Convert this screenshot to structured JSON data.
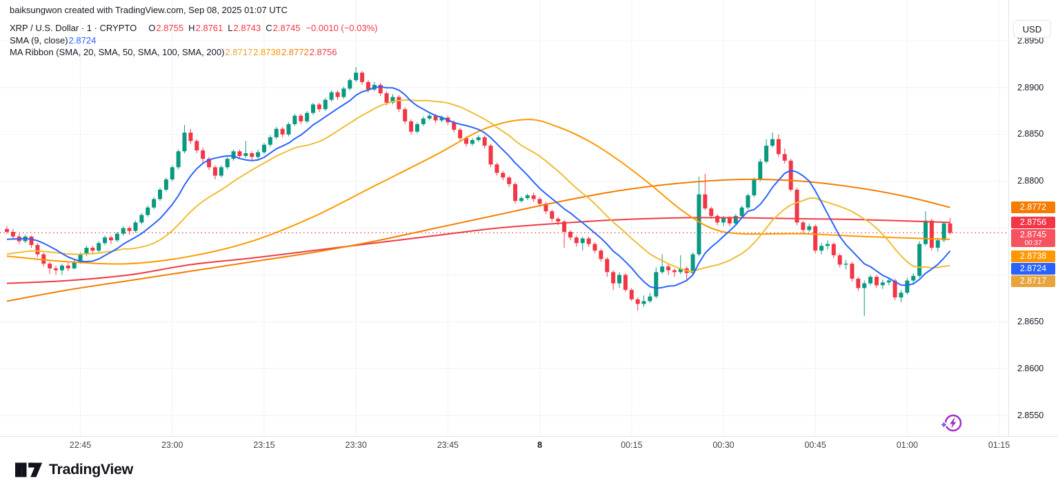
{
  "attribution": "baiksungwon created with TradingView.com, Sep 08, 2025 01:07 UTC",
  "symbol_row": {
    "title": "XRP / U.S. Dollar · 1 · CRYPTO",
    "o_label": "O",
    "o": "2.8755",
    "h_label": "H",
    "h": "2.8761",
    "l_label": "L",
    "l": "2.8743",
    "c_label": "C",
    "c": "2.8745",
    "change": "−0.0010 (−0.03%)"
  },
  "sma_row": {
    "title": "SMA (9, close)",
    "value": "2.8724"
  },
  "ribbon_row": {
    "title": "MA Ribbon (SMA, 20, SMA, 50, SMA, 100, SMA, 200)",
    "values": [
      "2.8717",
      "2.8738",
      "2.8772",
      "2.8756"
    ],
    "colors": [
      "#E9A33B",
      "#FF9800",
      "#F57C00",
      "#F23645"
    ]
  },
  "price_axis": {
    "currency": "USD",
    "tick_labels": [
      "2.8950",
      "2.8900",
      "2.8850",
      "2.8800",
      "2.8650",
      "2.8600",
      "2.8550"
    ],
    "tick_values": [
      2.895,
      2.89,
      2.885,
      2.88,
      2.865,
      2.86,
      2.855
    ],
    "grid_values": [
      2.895,
      2.89,
      2.885,
      2.88,
      2.875,
      2.87,
      2.865,
      2.86,
      2.855
    ],
    "badges": [
      {
        "text": "2.8772",
        "price": 2.8772,
        "bg": "#F57C00",
        "name": "sma100-price-label"
      },
      {
        "text": "2.8756",
        "price": 2.8756,
        "bg": "#F23645",
        "name": "sma200-price-label"
      },
      {
        "text": "2.8745",
        "price": 2.8745,
        "bg": "#F7525F",
        "sub": "00:37",
        "name": "last-price-label"
      },
      {
        "text": "2.8738",
        "price": 2.8738,
        "bg": "#FF9800",
        "name": "sma50-price-label"
      },
      {
        "text": "2.8724",
        "price": 2.8724,
        "bg": "#2962FF",
        "name": "sma9-price-label"
      },
      {
        "text": "2.8717",
        "price": 2.8717,
        "bg": "#E9A33B",
        "name": "sma20-price-label"
      }
    ]
  },
  "time_axis": {
    "ticks": [
      {
        "label": "22:45",
        "index": 12
      },
      {
        "label": "23:00",
        "index": 27
      },
      {
        "label": "23:15",
        "index": 42
      },
      {
        "label": "23:30",
        "index": 57
      },
      {
        "label": "23:45",
        "index": 72
      },
      {
        "label": "8",
        "index": 87,
        "bold": true
      },
      {
        "label": "00:15",
        "index": 102
      },
      {
        "label": "00:30",
        "index": 117
      },
      {
        "label": "00:45",
        "index": 132
      },
      {
        "label": "01:00",
        "index": 147
      },
      {
        "label": "01:15",
        "index": 162
      }
    ]
  },
  "logo_text": "TradingView",
  "colors": {
    "up": "#089981",
    "down": "#F23645",
    "grid": "#F0F2F5",
    "price_line": "#F23645",
    "axis_border": "#E0E3EB",
    "bolt_circle": "#A12AC9",
    "bolt_spark": "#7C5CFA"
  },
  "chart_data": {
    "type": "candlestick",
    "symbol": "XRP / U.S. Dollar",
    "interval": "1 minute",
    "start_time": "22:33",
    "price_line": {
      "value": 2.8745,
      "countdown": "00:37"
    },
    "y_range_hint": [
      2.852,
      2.897
    ],
    "candles": [
      [
        2.8749,
        2.8752,
        2.8744,
        2.8746
      ],
      [
        2.8746,
        2.8749,
        2.8739,
        2.8741
      ],
      [
        2.8741,
        2.8744,
        2.8733,
        2.8736
      ],
      [
        2.8736,
        2.8743,
        2.8734,
        2.8741
      ],
      [
        2.8741,
        2.8742,
        2.8729,
        2.8732
      ],
      [
        2.8732,
        2.8734,
        2.8719,
        2.8722
      ],
      [
        2.8722,
        2.8724,
        2.8709,
        2.8712
      ],
      [
        2.8712,
        2.8714,
        2.8701,
        2.8707
      ],
      [
        2.8707,
        2.871,
        2.87,
        2.8705
      ],
      [
        2.8705,
        2.8712,
        2.87,
        2.871
      ],
      [
        2.871,
        2.8713,
        2.8704,
        2.8707
      ],
      [
        2.8707,
        2.8716,
        2.8706,
        2.8714
      ],
      [
        2.8714,
        2.8724,
        2.8712,
        2.8722
      ],
      [
        2.8722,
        2.8731,
        2.872,
        2.8729
      ],
      [
        2.8729,
        2.8731,
        2.8722,
        2.8726
      ],
      [
        2.8726,
        2.8736,
        2.8724,
        2.8734
      ],
      [
        2.8734,
        2.8742,
        2.8732,
        2.874
      ],
      [
        2.874,
        2.8742,
        2.8733,
        2.8737
      ],
      [
        2.8737,
        2.8746,
        2.8735,
        2.8744
      ],
      [
        2.8744,
        2.8752,
        2.8742,
        2.875
      ],
      [
        2.875,
        2.8752,
        2.8743,
        2.8747
      ],
      [
        2.8747,
        2.8758,
        2.8745,
        2.8756
      ],
      [
        2.8756,
        2.8766,
        2.8754,
        2.8764
      ],
      [
        2.8764,
        2.8774,
        2.8762,
        2.8772
      ],
      [
        2.8772,
        2.8783,
        2.877,
        2.8781
      ],
      [
        2.8781,
        2.8793,
        2.8779,
        2.8791
      ],
      [
        2.8791,
        2.8804,
        2.8789,
        2.8802
      ],
      [
        2.8802,
        2.8817,
        2.88,
        2.8815
      ],
      [
        2.8815,
        2.8834,
        2.8813,
        2.8832
      ],
      [
        2.8832,
        2.886,
        2.883,
        2.8852
      ],
      [
        2.8852,
        2.8856,
        2.884,
        2.8843
      ],
      [
        2.8843,
        2.8845,
        2.883,
        2.8833
      ],
      [
        2.8833,
        2.8836,
        2.882,
        2.8824
      ],
      [
        2.8824,
        2.8826,
        2.8812,
        2.8815
      ],
      [
        2.8815,
        2.8817,
        2.8802,
        2.8806
      ],
      [
        2.8806,
        2.8817,
        2.8804,
        2.8815
      ],
      [
        2.8815,
        2.8826,
        2.8813,
        2.8824
      ],
      [
        2.8824,
        2.8834,
        2.8822,
        2.8832
      ],
      [
        2.8832,
        2.8834,
        2.8824,
        2.8827
      ],
      [
        2.8827,
        2.8843,
        2.8825,
        2.883
      ],
      [
        2.883,
        2.8832,
        2.8822,
        2.8826
      ],
      [
        2.8826,
        2.8834,
        2.8824,
        2.8831
      ],
      [
        2.8831,
        2.8841,
        2.8829,
        2.8839
      ],
      [
        2.8839,
        2.8849,
        2.8837,
        2.8847
      ],
      [
        2.8847,
        2.8858,
        2.8845,
        2.8856
      ],
      [
        2.8856,
        2.8858,
        2.8847,
        2.885
      ],
      [
        2.885,
        2.8863,
        2.8848,
        2.8861
      ],
      [
        2.8861,
        2.8872,
        2.8859,
        2.887
      ],
      [
        2.887,
        2.8872,
        2.8861,
        2.8864
      ],
      [
        2.8864,
        2.8875,
        2.8862,
        2.8873
      ],
      [
        2.8873,
        2.8884,
        2.8871,
        2.8882
      ],
      [
        2.8882,
        2.8884,
        2.8874,
        2.8877
      ],
      [
        2.8877,
        2.8889,
        2.8875,
        2.8887
      ],
      [
        2.8887,
        2.8897,
        2.8885,
        2.8895
      ],
      [
        2.8895,
        2.8897,
        2.8887,
        2.889
      ],
      [
        2.889,
        2.8901,
        2.8888,
        2.8899
      ],
      [
        2.8899,
        2.891,
        2.8897,
        2.8908
      ],
      [
        2.8908,
        2.8922,
        2.8906,
        2.8916
      ],
      [
        2.8916,
        2.8918,
        2.8903,
        2.8906
      ],
      [
        2.8906,
        2.8908,
        2.8895,
        2.8898
      ],
      [
        2.8898,
        2.8906,
        2.8896,
        2.8903
      ],
      [
        2.8903,
        2.8905,
        2.8891,
        2.8894
      ],
      [
        2.8894,
        2.8896,
        2.8881,
        2.8884
      ],
      [
        2.8884,
        2.8893,
        2.8882,
        2.889
      ],
      [
        2.889,
        2.8892,
        2.8874,
        2.8877
      ],
      [
        2.8877,
        2.8879,
        2.8861,
        2.8864
      ],
      [
        2.8864,
        2.8866,
        2.885,
        2.8853
      ],
      [
        2.8853,
        2.8863,
        2.8851,
        2.8861
      ],
      [
        2.8861,
        2.8869,
        2.8859,
        2.8867
      ],
      [
        2.8867,
        2.8872,
        2.8865,
        2.887
      ],
      [
        2.887,
        2.8872,
        2.8862,
        2.8865
      ],
      [
        2.8865,
        2.887,
        2.8863,
        2.8868
      ],
      [
        2.8868,
        2.887,
        2.886,
        2.8863
      ],
      [
        2.8863,
        2.8865,
        2.8852,
        2.8855
      ],
      [
        2.8855,
        2.8857,
        2.8843,
        2.8846
      ],
      [
        2.8846,
        2.8848,
        2.8837,
        2.884
      ],
      [
        2.884,
        2.8846,
        2.8838,
        2.8844
      ],
      [
        2.8844,
        2.8849,
        2.8842,
        2.8847
      ],
      [
        2.8847,
        2.8849,
        2.8835,
        2.8838
      ],
      [
        2.8838,
        2.884,
        2.8815,
        2.8818
      ],
      [
        2.8818,
        2.882,
        2.8806,
        2.8809
      ],
      [
        2.8809,
        2.8811,
        2.8801,
        2.8804
      ],
      [
        2.8804,
        2.8806,
        2.8794,
        2.8797
      ],
      [
        2.8797,
        2.8799,
        2.8776,
        2.8779
      ],
      [
        2.8779,
        2.8784,
        2.8777,
        2.8782
      ],
      [
        2.8782,
        2.8787,
        2.878,
        2.8785
      ],
      [
        2.8785,
        2.8788,
        2.8778,
        2.8781
      ],
      [
        2.8781,
        2.8783,
        2.8773,
        2.8776
      ],
      [
        2.8776,
        2.8778,
        2.8765,
        2.8768
      ],
      [
        2.8768,
        2.877,
        2.8757,
        2.876
      ],
      [
        2.876,
        2.8762,
        2.8753,
        2.8757
      ],
      [
        2.8757,
        2.8759,
        2.8729,
        2.8746
      ],
      [
        2.8746,
        2.8748,
        2.8737,
        2.874
      ],
      [
        2.874,
        2.8742,
        2.873,
        2.8734
      ],
      [
        2.8734,
        2.8741,
        2.8726,
        2.8739
      ],
      [
        2.8739,
        2.8741,
        2.873,
        2.8733
      ],
      [
        2.8733,
        2.8735,
        2.8723,
        2.8726
      ],
      [
        2.8726,
        2.8728,
        2.8714,
        2.8717
      ],
      [
        2.8717,
        2.8719,
        2.8698,
        2.8703
      ],
      [
        2.8703,
        2.8705,
        2.8684,
        2.8691
      ],
      [
        2.8691,
        2.8703,
        2.8686,
        2.87
      ],
      [
        2.87,
        2.8702,
        2.8682,
        2.8684
      ],
      [
        2.8684,
        2.8686,
        2.8672,
        2.8674
      ],
      [
        2.8674,
        2.8676,
        2.8662,
        2.8669
      ],
      [
        2.8669,
        2.8678,
        2.8666,
        2.8672
      ],
      [
        2.8672,
        2.8681,
        2.867,
        2.8677
      ],
      [
        2.8677,
        2.8708,
        2.8675,
        2.8703
      ],
      [
        2.8703,
        2.8722,
        2.8701,
        2.8709
      ],
      [
        2.8709,
        2.8711,
        2.87,
        2.8705
      ],
      [
        2.8705,
        2.8707,
        2.8698,
        2.8703
      ],
      [
        2.8703,
        2.8721,
        2.8701,
        2.8707
      ],
      [
        2.8707,
        2.8709,
        2.8693,
        2.8702
      ],
      [
        2.8702,
        2.8724,
        2.87,
        2.8722
      ],
      [
        2.8722,
        2.8805,
        2.872,
        2.8786
      ],
      [
        2.8786,
        2.8808,
        2.8769,
        2.8771
      ],
      [
        2.8771,
        2.8773,
        2.876,
        2.8763
      ],
      [
        2.8763,
        2.8765,
        2.8753,
        2.8756
      ],
      [
        2.8756,
        2.8763,
        2.8752,
        2.8761
      ],
      [
        2.8761,
        2.8763,
        2.8752,
        2.8755
      ],
      [
        2.8755,
        2.8765,
        2.8753,
        2.8763
      ],
      [
        2.8763,
        2.8774,
        2.8761,
        2.8772
      ],
      [
        2.8772,
        2.8787,
        2.877,
        2.8785
      ],
      [
        2.8785,
        2.8804,
        2.8783,
        2.8802
      ],
      [
        2.8802,
        2.8824,
        2.88,
        2.8821
      ],
      [
        2.8821,
        2.8845,
        2.8819,
        2.8838
      ],
      [
        2.8838,
        2.8852,
        2.8836,
        2.8845
      ],
      [
        2.8845,
        2.885,
        2.8826,
        2.8829
      ],
      [
        2.8829,
        2.8835,
        2.8819,
        2.8822
      ],
      [
        2.8822,
        2.8824,
        2.8789,
        2.8791
      ],
      [
        2.8791,
        2.8793,
        2.8753,
        2.8756
      ],
      [
        2.8756,
        2.8758,
        2.8744,
        2.8748
      ],
      [
        2.8748,
        2.8755,
        2.8746,
        2.8752
      ],
      [
        2.8752,
        2.8754,
        2.8723,
        2.8726
      ],
      [
        2.8726,
        2.8734,
        2.8722,
        2.8731
      ],
      [
        2.8731,
        2.8737,
        2.8727,
        2.8733
      ],
      [
        2.8733,
        2.8735,
        2.8718,
        2.8721
      ],
      [
        2.8721,
        2.8723,
        2.8708,
        2.8711
      ],
      [
        2.8711,
        2.8716,
        2.8706,
        2.8712
      ],
      [
        2.8712,
        2.8714,
        2.8693,
        2.8696
      ],
      [
        2.8696,
        2.8698,
        2.8683,
        2.8686
      ],
      [
        2.8686,
        2.8694,
        2.8656,
        2.8691
      ],
      [
        2.8691,
        2.87,
        2.8689,
        2.8698
      ],
      [
        2.8698,
        2.87,
        2.8686,
        2.8689
      ],
      [
        2.8689,
        2.8695,
        2.8685,
        2.8692
      ],
      [
        2.8692,
        2.8697,
        2.8689,
        2.8694
      ],
      [
        2.8694,
        2.8696,
        2.8673,
        2.8676
      ],
      [
        2.8676,
        2.8684,
        2.8671,
        2.8681
      ],
      [
        2.8681,
        2.8697,
        2.8679,
        2.8694
      ],
      [
        2.8694,
        2.8702,
        2.869,
        2.8699
      ],
      [
        2.8699,
        2.8736,
        2.8697,
        2.8733
      ],
      [
        2.8733,
        2.8768,
        2.8731,
        2.8758
      ],
      [
        2.8758,
        2.876,
        2.8726,
        2.8729
      ],
      [
        2.8729,
        2.874,
        2.8725,
        2.8737
      ],
      [
        2.8737,
        2.8757,
        2.8735,
        2.8755
      ],
      [
        2.8755,
        2.8761,
        2.8743,
        2.8745
      ]
    ],
    "overlays": [
      {
        "name": "SMA 9",
        "kind": "sma",
        "period": 9,
        "seed": 2.8737,
        "color": "#2962FF",
        "last_value": 2.8724
      },
      {
        "name": "SMA 20",
        "kind": "sma",
        "period": 20,
        "seed": 2.8721,
        "color": "#EFBC34",
        "last_value": 2.8717
      },
      {
        "name": "SMA 50",
        "kind": "points",
        "color": "#FF9800",
        "last_value": 2.8738,
        "points": [
          [
            0,
            2.872
          ],
          [
            10,
            2.8714
          ],
          [
            20,
            2.8712
          ],
          [
            30,
            2.872
          ],
          [
            40,
            2.8736
          ],
          [
            50,
            2.8762
          ],
          [
            60,
            2.8795
          ],
          [
            70,
            2.8828
          ],
          [
            78,
            2.8856
          ],
          [
            85,
            2.8866
          ],
          [
            90,
            2.8858
          ],
          [
            95,
            2.8843
          ],
          [
            100,
            2.8822
          ],
          [
            105,
            2.8797
          ],
          [
            110,
            2.877
          ],
          [
            115,
            2.875
          ],
          [
            120,
            2.8744
          ],
          [
            130,
            2.8744
          ],
          [
            140,
            2.8741
          ],
          [
            154,
            2.8738
          ]
        ]
      },
      {
        "name": "SMA 100",
        "kind": "points",
        "color": "#F57C00",
        "last_value": 2.8772,
        "points": [
          [
            0,
            2.8672
          ],
          [
            10,
            2.8684
          ],
          [
            20,
            2.8694
          ],
          [
            30,
            2.8704
          ],
          [
            40,
            2.8714
          ],
          [
            50,
            2.8724
          ],
          [
            60,
            2.8736
          ],
          [
            70,
            2.875
          ],
          [
            80,
            2.8764
          ],
          [
            90,
            2.8778
          ],
          [
            100,
            2.879
          ],
          [
            110,
            2.8798
          ],
          [
            120,
            2.8802
          ],
          [
            130,
            2.88
          ],
          [
            140,
            2.8792
          ],
          [
            148,
            2.8782
          ],
          [
            154,
            2.8772
          ]
        ]
      },
      {
        "name": "SMA 200",
        "kind": "points",
        "color": "#EF3A42",
        "last_value": 2.8756,
        "points": [
          [
            0,
            2.8691
          ],
          [
            10,
            2.8694
          ],
          [
            20,
            2.87
          ],
          [
            30,
            2.8711
          ],
          [
            40,
            2.8718
          ],
          [
            50,
            2.8726
          ],
          [
            60,
            2.8734
          ],
          [
            70,
            2.8742
          ],
          [
            80,
            2.875
          ],
          [
            90,
            2.8755
          ],
          [
            100,
            2.8759
          ],
          [
            110,
            2.8761
          ],
          [
            120,
            2.8761
          ],
          [
            130,
            2.876
          ],
          [
            140,
            2.8759
          ],
          [
            154,
            2.8756
          ]
        ]
      }
    ]
  }
}
